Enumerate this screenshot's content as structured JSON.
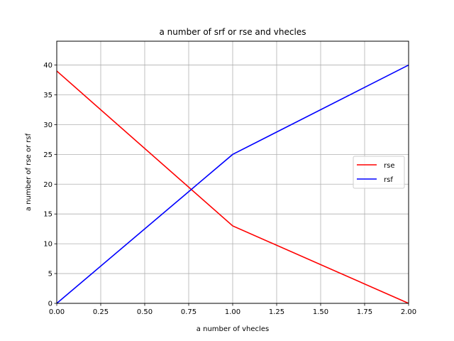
{
  "chart_data": {
    "type": "line",
    "title": "a number of srf or rse and vhecles",
    "xlabel": "a number of vhecles",
    "ylabel": "a number of rse or rsf",
    "xlim": [
      0,
      2
    ],
    "ylim": [
      0,
      44
    ],
    "xticks": [
      0,
      0.25,
      0.5,
      0.75,
      1.0,
      1.25,
      1.5,
      1.75,
      2.0
    ],
    "xtick_labels": [
      "0.00",
      "0.25",
      "0.50",
      "0.75",
      "1.00",
      "1.25",
      "1.50",
      "1.75",
      "2.00"
    ],
    "yticks": [
      0,
      5,
      10,
      15,
      20,
      25,
      30,
      35,
      40
    ],
    "ytick_labels": [
      "0",
      "5",
      "10",
      "15",
      "20",
      "25",
      "30",
      "35",
      "40"
    ],
    "grid": true,
    "legend_position": "center-right",
    "series": [
      {
        "name": "rse",
        "color": "#ff0000",
        "x": [
          0,
          1,
          2
        ],
        "y": [
          39,
          13,
          0
        ]
      },
      {
        "name": "rsf",
        "color": "#0000ff",
        "x": [
          0,
          1,
          2
        ],
        "y": [
          0,
          25,
          40
        ]
      }
    ]
  }
}
